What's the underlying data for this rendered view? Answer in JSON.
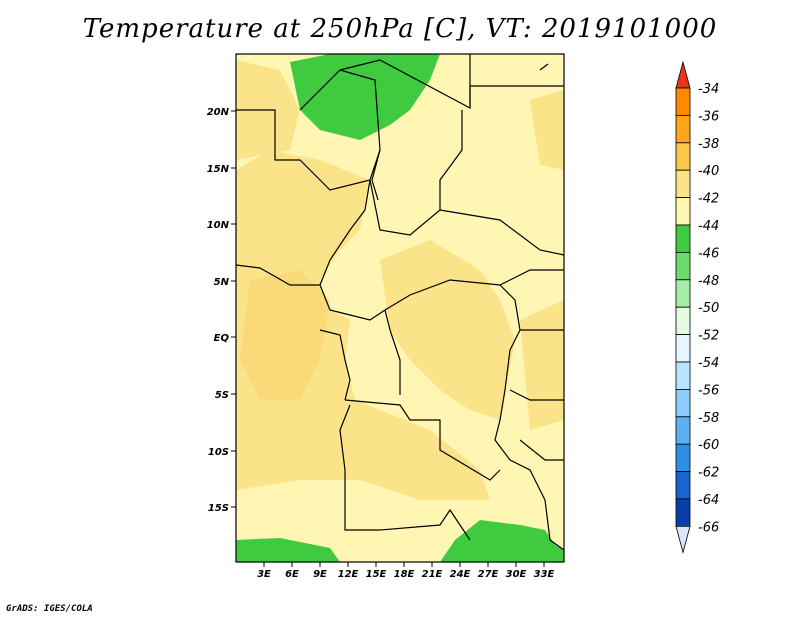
{
  "title": "Temperature at 250hPa [C], VT: 2019101000",
  "credit": "GrADS: IGES/COLA",
  "map": {
    "lon_ticks": [
      "3E",
      "6E",
      "9E",
      "12E",
      "15E",
      "18E",
      "21E",
      "24E",
      "27E",
      "30E",
      "33E"
    ],
    "lat_ticks": [
      "20N",
      "15N",
      "10N",
      "5N",
      "EQ",
      "5S",
      "10S",
      "15S"
    ],
    "colors": {
      "level_42_44": "#fff6b3",
      "level_40_42": "#fbe38a",
      "level_38_40": "#f9d36a",
      "level_46_44": "#3fca3f",
      "border": "#000000"
    }
  },
  "colorbar": {
    "labels": [
      "-34",
      "-36",
      "-38",
      "-40",
      "-42",
      "-44",
      "-46",
      "-48",
      "-50",
      "-52",
      "-54",
      "-56",
      "-58",
      "-60",
      "-62",
      "-64",
      "-66"
    ],
    "colors": [
      "#ff5a1e",
      "#ff8a00",
      "#ffa51a",
      "#fbc64a",
      "#fbe38a",
      "#fff6b3",
      "#3fca3f",
      "#6ddc6d",
      "#a5eea5",
      "#e3fbe3",
      "#e6f6ff",
      "#b8e4ff",
      "#8dcdfb",
      "#5ab2f4",
      "#2e8fe6",
      "#1a64d2",
      "#0a3ea8",
      "#001a6e"
    ],
    "top_arrow_color": "#e8351a",
    "bottom_arrow_color": "#dfe3fb"
  }
}
